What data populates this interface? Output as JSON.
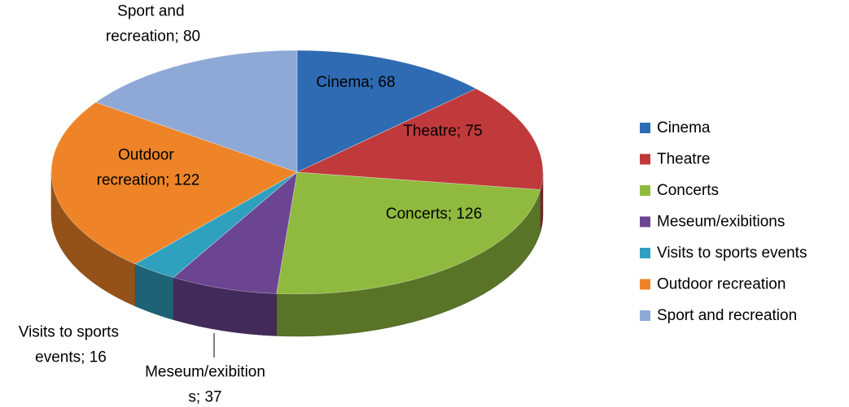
{
  "chart_data": {
    "type": "pie3d",
    "categories": [
      "Cinema",
      "Theatre",
      "Concerts",
      "Meseum/exibitions",
      "Visits to sports events",
      "Outdoor recreation",
      "Sport and recreation"
    ],
    "values": [
      68,
      75,
      126,
      37,
      16,
      122,
      80
    ],
    "value_labels": [
      "Cinema; 68",
      "Theatre; 75",
      "Concerts; 126",
      "Meseum/exibitions; 37",
      "Visits to sports events; 16",
      "Outdoor recreation; 122",
      "Sport and recreation; 80"
    ],
    "colors": [
      "#2e6bb3",
      "#c0393b",
      "#8fba3f",
      "#6b4592",
      "#2fa0bd",
      "#ee8427",
      "#8fa9d6"
    ],
    "legend": "right"
  }
}
